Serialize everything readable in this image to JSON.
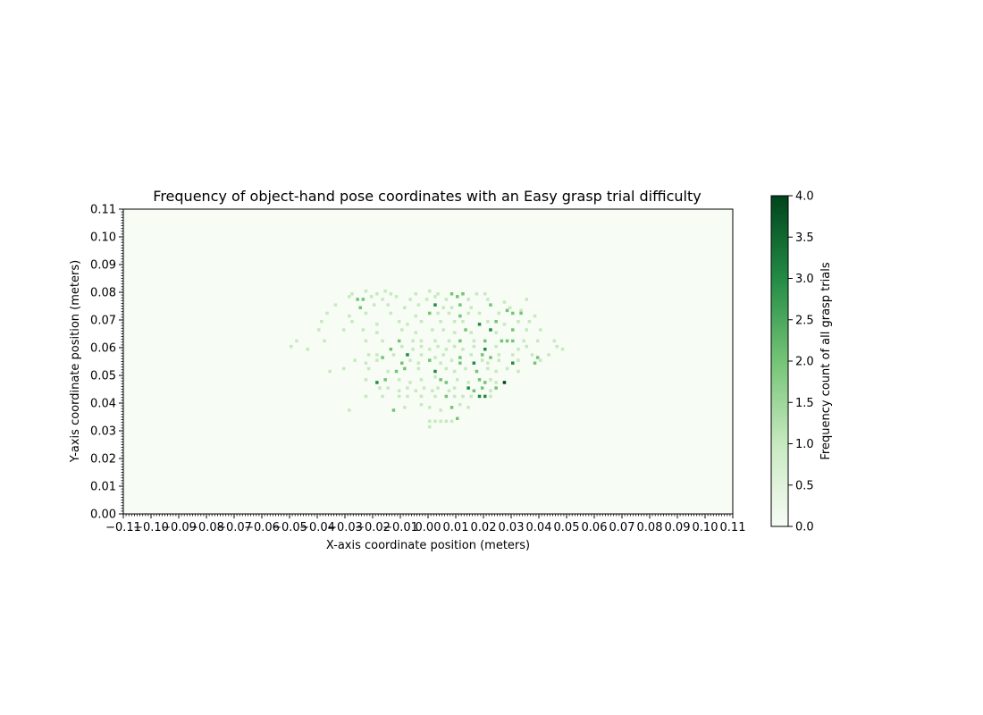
{
  "chart_data": {
    "type": "heatmap",
    "title": "Frequency of object-hand pose coordinates with an Easy grasp trial difficulty",
    "xlabel": "X-axis coordinate position (meters)",
    "ylabel": "Y-axis coordinate position (meters)",
    "xlim": [
      -0.11,
      0.11
    ],
    "ylim": [
      0.0,
      0.11
    ],
    "x_ticks": [
      "−0.11",
      "−0.10",
      "−0.09",
      "−0.08",
      "−0.07",
      "−0.06",
      "−0.05",
      "−0.04",
      "−0.03",
      "−0.02",
      "−0.01",
      "0.00",
      "0.01",
      "0.02",
      "0.03",
      "0.04",
      "0.05",
      "0.06",
      "0.07",
      "0.08",
      "0.09",
      "0.10",
      "0.11"
    ],
    "y_ticks": [
      "0.00",
      "0.01",
      "0.02",
      "0.03",
      "0.04",
      "0.05",
      "0.06",
      "0.07",
      "0.08",
      "0.09",
      "0.10",
      "0.11"
    ],
    "bin_size": 0.001,
    "colorscale": [
      "#f7fcf5",
      "#c7e9c0",
      "#74c476",
      "#238b45",
      "#00441b"
    ],
    "colorbar": {
      "label": "Frequency count of all grasp trials",
      "range": [
        0.0,
        4.0
      ],
      "ticks": [
        "0.0",
        "0.5",
        "1.0",
        "1.5",
        "2.0",
        "2.5",
        "3.0",
        "3.5",
        "4.0"
      ]
    },
    "cells": [
      [
        -0.0275,
        0.0795,
        1
      ],
      [
        -0.0225,
        0.0805,
        1
      ],
      [
        -0.0185,
        0.0795,
        1
      ],
      [
        -0.0155,
        0.0805,
        1
      ],
      [
        -0.0135,
        0.0795,
        1
      ],
      [
        -0.0045,
        0.0795,
        1
      ],
      [
        0.0005,
        0.0805,
        1
      ],
      [
        0.0035,
        0.0795,
        1
      ],
      [
        0.0085,
        0.0795,
        2
      ],
      [
        0.0125,
        0.0795,
        2
      ],
      [
        0.0175,
        0.0795,
        1
      ],
      [
        0.0205,
        0.0795,
        1
      ],
      [
        -0.0285,
        0.0785,
        1
      ],
      [
        -0.0255,
        0.0775,
        2
      ],
      [
        -0.0235,
        0.0775,
        2
      ],
      [
        -0.0205,
        0.0785,
        1
      ],
      [
        -0.0165,
        0.0775,
        1
      ],
      [
        -0.0115,
        0.0785,
        1
      ],
      [
        -0.0065,
        0.0775,
        1
      ],
      [
        -0.0005,
        0.0775,
        1
      ],
      [
        0.0025,
        0.0785,
        1
      ],
      [
        0.0065,
        0.0775,
        1
      ],
      [
        0.0105,
        0.0785,
        2
      ],
      [
        0.0145,
        0.0775,
        1
      ],
      [
        0.0215,
        0.0775,
        1
      ],
      [
        0.0275,
        0.0765,
        1
      ],
      [
        0.0355,
        0.0775,
        1
      ],
      [
        -0.0335,
        0.0755,
        1
      ],
      [
        -0.0245,
        0.0745,
        2
      ],
      [
        -0.0195,
        0.0755,
        1
      ],
      [
        -0.0145,
        0.0755,
        1
      ],
      [
        -0.0085,
        0.0745,
        1
      ],
      [
        -0.0035,
        0.0755,
        1
      ],
      [
        0.0025,
        0.0755,
        3
      ],
      [
        0.0055,
        0.0745,
        1
      ],
      [
        0.0085,
        0.0745,
        1
      ],
      [
        0.0115,
        0.0755,
        2
      ],
      [
        0.0155,
        0.0745,
        1
      ],
      [
        0.0225,
        0.0755,
        2
      ],
      [
        0.0295,
        0.0745,
        1
      ],
      [
        0.0335,
        0.0735,
        1
      ],
      [
        -0.0365,
        0.0725,
        1
      ],
      [
        -0.0285,
        0.0715,
        1
      ],
      [
        -0.0225,
        0.0725,
        1
      ],
      [
        -0.0135,
        0.0725,
        1
      ],
      [
        -0.0045,
        0.0715,
        1
      ],
      [
        0.0005,
        0.0725,
        2
      ],
      [
        0.0035,
        0.0725,
        1
      ],
      [
        0.0075,
        0.0725,
        1
      ],
      [
        0.0115,
        0.0715,
        2
      ],
      [
        0.0145,
        0.0725,
        1
      ],
      [
        0.0185,
        0.0725,
        1
      ],
      [
        0.0255,
        0.0725,
        1
      ],
      [
        0.0285,
        0.0735,
        2
      ],
      [
        0.0305,
        0.0725,
        2
      ],
      [
        0.0335,
        0.0725,
        2
      ],
      [
        0.0385,
        0.0715,
        1
      ],
      [
        -0.0385,
        0.0695,
        1
      ],
      [
        -0.0275,
        0.0695,
        1
      ],
      [
        -0.0185,
        0.0685,
        1
      ],
      [
        -0.0105,
        0.0695,
        1
      ],
      [
        -0.0075,
        0.0685,
        1
      ],
      [
        -0.0025,
        0.0695,
        1
      ],
      [
        0.0045,
        0.0695,
        1
      ],
      [
        0.0095,
        0.0695,
        1
      ],
      [
        0.0125,
        0.0695,
        1
      ],
      [
        0.0185,
        0.0685,
        3
      ],
      [
        0.0215,
        0.0695,
        1
      ],
      [
        0.0245,
        0.0695,
        2
      ],
      [
        0.0275,
        0.0685,
        1
      ],
      [
        0.0325,
        0.0695,
        1
      ],
      [
        0.0365,
        0.0695,
        1
      ],
      [
        -0.0395,
        0.0665,
        1
      ],
      [
        -0.0305,
        0.0665,
        1
      ],
      [
        -0.0235,
        0.0665,
        1
      ],
      [
        -0.0185,
        0.0655,
        1
      ],
      [
        -0.0095,
        0.0665,
        1
      ],
      [
        -0.0045,
        0.0655,
        1
      ],
      [
        0.0015,
        0.0665,
        1
      ],
      [
        0.0055,
        0.0665,
        1
      ],
      [
        0.0095,
        0.0655,
        1
      ],
      [
        0.0135,
        0.0665,
        2
      ],
      [
        0.0155,
        0.0655,
        1
      ],
      [
        0.0225,
        0.0665,
        3
      ],
      [
        0.0245,
        0.0655,
        1
      ],
      [
        0.0305,
        0.0665,
        2
      ],
      [
        0.0355,
        0.0665,
        1
      ],
      [
        0.0405,
        0.0665,
        1
      ],
      [
        -0.0475,
        0.0625,
        1
      ],
      [
        -0.0375,
        0.0625,
        1
      ],
      [
        -0.0225,
        0.0625,
        1
      ],
      [
        -0.0165,
        0.0625,
        1
      ],
      [
        -0.0105,
        0.0625,
        2
      ],
      [
        -0.0055,
        0.0625,
        1
      ],
      [
        -0.0025,
        0.0625,
        1
      ],
      [
        0.0025,
        0.0625,
        1
      ],
      [
        0.0075,
        0.0625,
        1
      ],
      [
        0.0115,
        0.0625,
        2
      ],
      [
        0.0165,
        0.0625,
        1
      ],
      [
        0.0205,
        0.0625,
        2
      ],
      [
        0.0265,
        0.0625,
        2
      ],
      [
        0.0285,
        0.0625,
        2
      ],
      [
        0.0305,
        0.0625,
        2
      ],
      [
        0.0345,
        0.0625,
        1
      ],
      [
        0.0395,
        0.0625,
        1
      ],
      [
        0.0455,
        0.0625,
        1
      ],
      [
        -0.0495,
        0.0605,
        1
      ],
      [
        -0.0435,
        0.0595,
        1
      ],
      [
        -0.0135,
        0.0595,
        2
      ],
      [
        -0.0095,
        0.0605,
        1
      ],
      [
        -0.0055,
        0.0595,
        1
      ],
      [
        -0.0025,
        0.0605,
        1
      ],
      [
        0.0005,
        0.0595,
        1
      ],
      [
        0.0035,
        0.0605,
        1
      ],
      [
        0.0065,
        0.0595,
        1
      ],
      [
        0.0095,
        0.0605,
        1
      ],
      [
        0.0125,
        0.0595,
        1
      ],
      [
        0.0165,
        0.0605,
        1
      ],
      [
        0.0205,
        0.0595,
        3
      ],
      [
        0.0245,
        0.0605,
        1
      ],
      [
        0.0325,
        0.0595,
        1
      ],
      [
        0.0355,
        0.0605,
        1
      ],
      [
        0.0465,
        0.0605,
        1
      ],
      [
        0.0485,
        0.0595,
        1
      ],
      [
        -0.0215,
        0.0575,
        1
      ],
      [
        -0.0185,
        0.0575,
        1
      ],
      [
        -0.0165,
        0.0565,
        2
      ],
      [
        -0.0125,
        0.0575,
        1
      ],
      [
        -0.0075,
        0.0575,
        3
      ],
      [
        -0.0025,
        0.0575,
        1
      ],
      [
        0.0025,
        0.0565,
        1
      ],
      [
        0.0055,
        0.0575,
        1
      ],
      [
        0.0115,
        0.0565,
        2
      ],
      [
        0.0155,
        0.0575,
        1
      ],
      [
        0.0195,
        0.0575,
        2
      ],
      [
        0.0225,
        0.0565,
        2
      ],
      [
        0.0255,
        0.0575,
        1
      ],
      [
        0.0305,
        0.0575,
        1
      ],
      [
        0.0375,
        0.0575,
        1
      ],
      [
        0.0395,
        0.0565,
        2
      ],
      [
        0.0435,
        0.0575,
        1
      ],
      [
        -0.0265,
        0.0555,
        1
      ],
      [
        -0.0225,
        0.0545,
        1
      ],
      [
        -0.0185,
        0.0555,
        1
      ],
      [
        -0.0095,
        0.0545,
        2
      ],
      [
        -0.0065,
        0.0555,
        1
      ],
      [
        -0.0035,
        0.0545,
        1
      ],
      [
        0.0005,
        0.0555,
        2
      ],
      [
        0.0045,
        0.0545,
        1
      ],
      [
        0.0085,
        0.0555,
        1
      ],
      [
        0.0115,
        0.0545,
        2
      ],
      [
        0.0165,
        0.0545,
        3
      ],
      [
        0.0195,
        0.0555,
        1
      ],
      [
        0.0215,
        0.0545,
        1
      ],
      [
        0.0255,
        0.0555,
        1
      ],
      [
        0.0305,
        0.0545,
        3
      ],
      [
        0.0325,
        0.0555,
        1
      ],
      [
        0.0385,
        0.0545,
        2
      ],
      [
        0.0405,
        0.0555,
        1
      ],
      [
        -0.0355,
        0.0515,
        1
      ],
      [
        -0.0305,
        0.0525,
        1
      ],
      [
        -0.0215,
        0.0525,
        1
      ],
      [
        -0.0145,
        0.0515,
        1
      ],
      [
        -0.0115,
        0.0515,
        2
      ],
      [
        -0.0085,
        0.0525,
        2
      ],
      [
        -0.0035,
        0.0525,
        1
      ],
      [
        0.0025,
        0.0515,
        3
      ],
      [
        0.0065,
        0.0525,
        1
      ],
      [
        0.0095,
        0.0515,
        1
      ],
      [
        0.0135,
        0.0525,
        1
      ],
      [
        0.0175,
        0.0515,
        2
      ],
      [
        0.0215,
        0.0525,
        1
      ],
      [
        0.0245,
        0.0515,
        1
      ],
      [
        0.0285,
        0.0525,
        1
      ],
      [
        0.0325,
        0.0515,
        1
      ],
      [
        -0.0225,
        0.0485,
        1
      ],
      [
        -0.0185,
        0.0475,
        3
      ],
      [
        -0.0155,
        0.0485,
        2
      ],
      [
        -0.0105,
        0.0485,
        1
      ],
      [
        -0.0065,
        0.0475,
        1
      ],
      [
        -0.0025,
        0.0485,
        1
      ],
      [
        0.0025,
        0.0495,
        1
      ],
      [
        0.0045,
        0.0485,
        2
      ],
      [
        0.0065,
        0.0475,
        2
      ],
      [
        0.0105,
        0.0485,
        1
      ],
      [
        0.0145,
        0.0475,
        1
      ],
      [
        0.0185,
        0.0485,
        2
      ],
      [
        0.0205,
        0.0475,
        2
      ],
      [
        0.0225,
        0.0485,
        1
      ],
      [
        0.0245,
        0.0475,
        1
      ],
      [
        0.0275,
        0.0475,
        4
      ],
      [
        -0.0175,
        0.0455,
        1
      ],
      [
        -0.0145,
        0.0455,
        1
      ],
      [
        -0.0105,
        0.0445,
        1
      ],
      [
        -0.0075,
        0.0455,
        1
      ],
      [
        -0.0045,
        0.0445,
        1
      ],
      [
        -0.0015,
        0.0455,
        1
      ],
      [
        0.0015,
        0.0445,
        1
      ],
      [
        0.0035,
        0.0455,
        1
      ],
      [
        0.0075,
        0.0445,
        1
      ],
      [
        0.0095,
        0.0455,
        1
      ],
      [
        0.0145,
        0.0455,
        3
      ],
      [
        0.0165,
        0.0445,
        2
      ],
      [
        0.0195,
        0.0455,
        2
      ],
      [
        0.0225,
        0.0445,
        1
      ],
      [
        0.0245,
        0.0455,
        2
      ],
      [
        -0.0225,
        0.0425,
        1
      ],
      [
        -0.0165,
        0.0425,
        1
      ],
      [
        -0.0105,
        0.0425,
        1
      ],
      [
        -0.0075,
        0.0425,
        1
      ],
      [
        -0.0025,
        0.0425,
        1
      ],
      [
        0.0025,
        0.0425,
        1
      ],
      [
        0.0065,
        0.0425,
        2
      ],
      [
        0.0095,
        0.0425,
        1
      ],
      [
        0.0125,
        0.0425,
        1
      ],
      [
        0.0155,
        0.0425,
        1
      ],
      [
        0.0185,
        0.0425,
        3
      ],
      [
        0.0205,
        0.0425,
        3
      ],
      [
        0.0225,
        0.0425,
        1
      ],
      [
        -0.0285,
        0.0375,
        1
      ],
      [
        -0.0125,
        0.0375,
        2
      ],
      [
        -0.0085,
        0.0385,
        1
      ],
      [
        -0.0025,
        0.0395,
        1
      ],
      [
        0.0005,
        0.0385,
        1
      ],
      [
        0.0045,
        0.0375,
        1
      ],
      [
        0.0085,
        0.0385,
        2
      ],
      [
        0.0115,
        0.0395,
        1
      ],
      [
        0.0145,
        0.0385,
        1
      ],
      [
        0.0005,
        0.0335,
        1
      ],
      [
        0.0025,
        0.0335,
        1
      ],
      [
        0.0045,
        0.0335,
        1
      ],
      [
        0.0065,
        0.0335,
        1
      ],
      [
        0.0085,
        0.0335,
        1
      ],
      [
        0.0105,
        0.0345,
        2
      ],
      [
        0.0005,
        0.0315,
        1
      ]
    ]
  }
}
